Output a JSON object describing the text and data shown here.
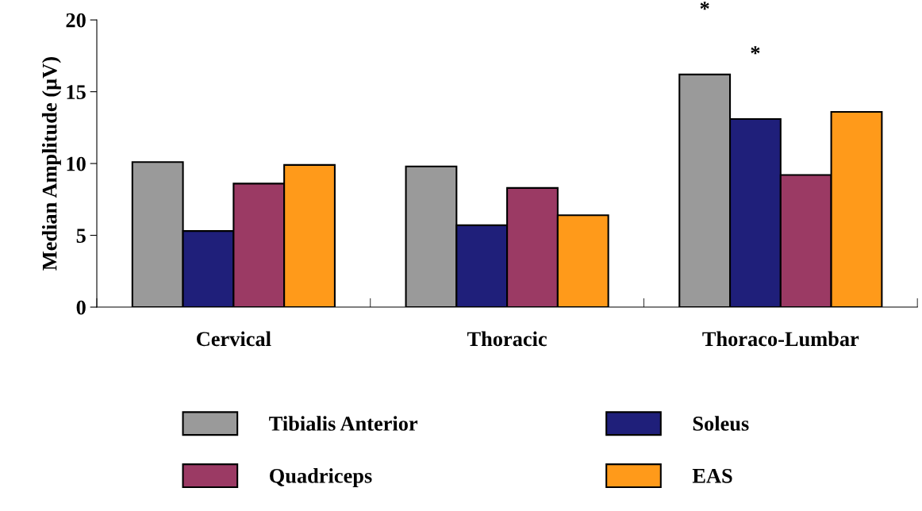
{
  "chart_data": {
    "type": "bar",
    "ylabel": "Median Amplitude (µV)",
    "categories": [
      "Cervical",
      "Thoracic",
      "Thoraco-Lumbar"
    ],
    "series": [
      {
        "name": "Tibialis Anterior",
        "color": "#9a9a9a",
        "values": [
          10.1,
          9.8,
          16.2
        ]
      },
      {
        "name": "Soleus",
        "color": "#1f1f7a",
        "values": [
          5.3,
          5.7,
          13.1
        ]
      },
      {
        "name": "Quadriceps",
        "color": "#9b3a64",
        "values": [
          8.6,
          8.3,
          9.2
        ]
      },
      {
        "name": "EAS",
        "color": "#ff9a1a",
        "values": [
          9.9,
          6.4,
          13.6
        ]
      }
    ],
    "ylim": [
      0,
      20
    ],
    "yticks": [
      0,
      5,
      10,
      15,
      20
    ],
    "grid": false,
    "legend": "bottom",
    "annotations": [
      "*",
      "*"
    ]
  }
}
